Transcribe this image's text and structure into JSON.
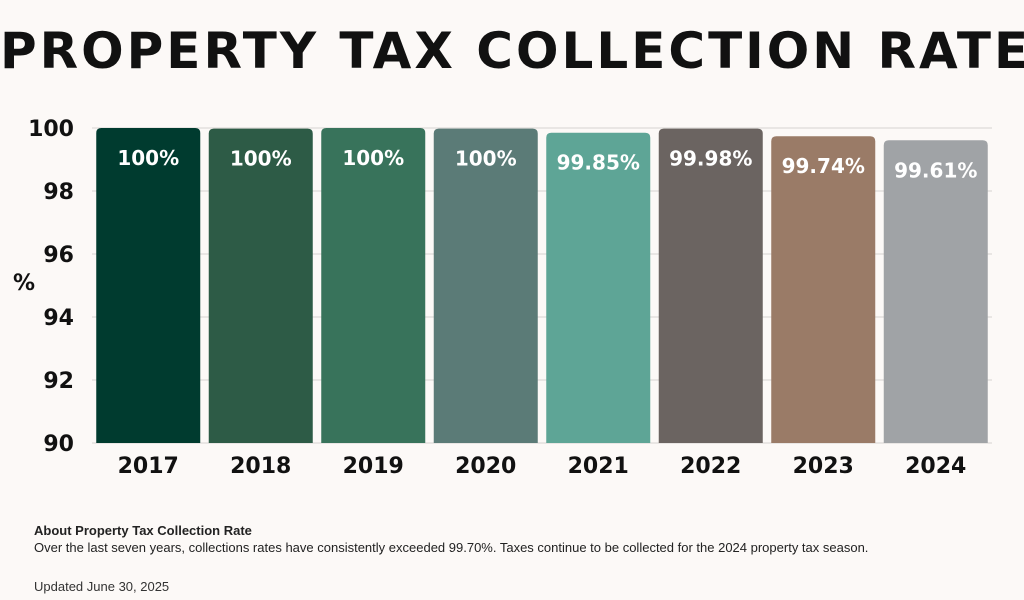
{
  "chart_data": {
    "type": "bar",
    "title": "PROPERTY TAX COLLECTION RATE",
    "ylabel": "%",
    "xlabel": "",
    "categories": [
      "2017",
      "2018",
      "2019",
      "2020",
      "2021",
      "2022",
      "2023",
      "2024"
    ],
    "values": [
      100,
      99.98,
      100,
      99.98,
      99.85,
      99.98,
      99.74,
      99.61
    ],
    "data_labels": [
      "100%",
      "100%",
      "100%",
      "100%",
      "99.85%",
      "99.98%",
      "99.74%",
      "99.61%"
    ],
    "colors": [
      "#003b2f",
      "#2d5b46",
      "#38735b",
      "#5b7b77",
      "#5ea596",
      "#6b6461",
      "#9a7b67",
      "#a0a3a6"
    ],
    "ylim": [
      90,
      100
    ],
    "yticks": [
      90,
      92,
      94,
      96,
      98,
      100
    ],
    "grid": true,
    "legend": "none"
  },
  "about": {
    "title": "About Property Tax Collection Rate",
    "text": "Over the last seven years, collections rates have consistently exceeded 99.70%. Taxes continue to be collected for the 2024 property tax season."
  },
  "updated": "Updated June 30, 2025"
}
